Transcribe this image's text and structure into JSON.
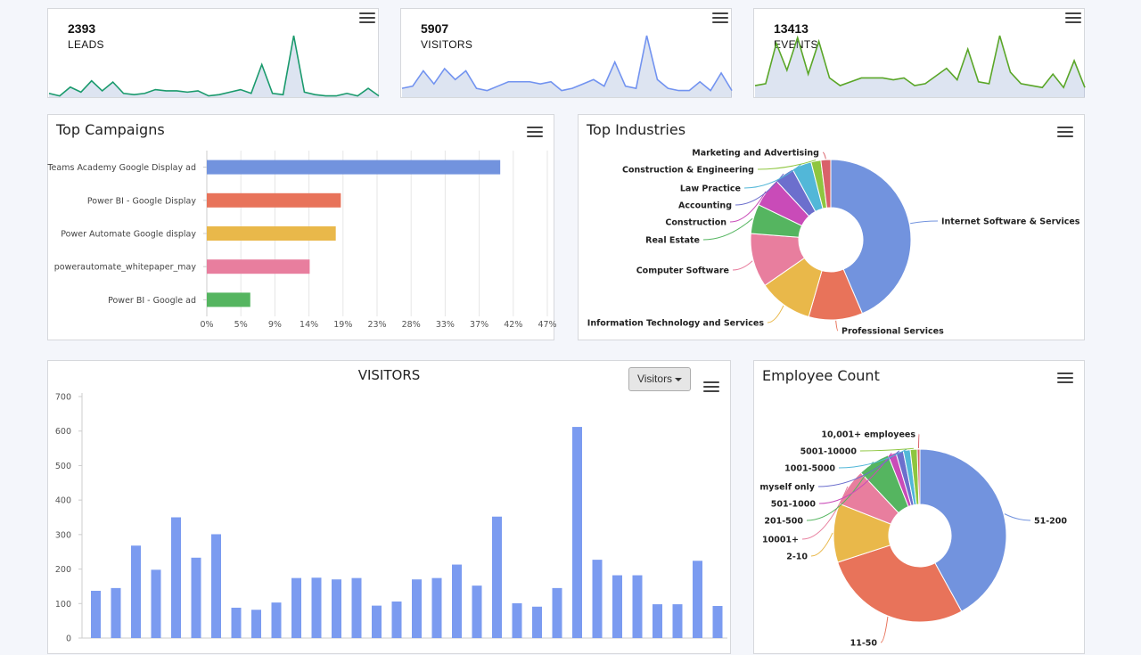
{
  "kpis": [
    {
      "value": "2393",
      "label": "LEADS",
      "color": "#1a9a6c",
      "series": [
        3,
        1,
        8,
        4,
        13,
        5,
        12,
        3,
        2,
        3,
        6,
        5,
        5,
        4,
        5,
        1,
        2,
        4,
        6,
        3,
        26,
        3,
        2,
        49,
        4,
        2,
        1,
        1,
        3,
        1,
        7,
        1
      ]
    },
    {
      "value": "5907",
      "label": "VISITORS",
      "color": "#7293f0",
      "series": [
        4,
        5,
        12,
        6,
        13,
        8,
        12,
        4,
        3,
        5,
        7,
        7,
        7,
        6,
        7,
        3,
        4,
        6,
        8,
        5,
        16,
        5,
        4,
        28,
        8,
        4,
        3,
        3,
        7,
        3,
        11,
        3
      ]
    },
    {
      "value": "13413",
      "label": "EVENTS",
      "color": "#5aa628",
      "series": [
        6,
        7,
        28,
        14,
        31,
        12,
        29,
        10,
        6,
        8,
        10,
        10,
        10,
        9,
        10,
        6,
        7,
        11,
        15,
        9,
        25,
        8,
        7,
        32,
        13,
        7,
        6,
        5,
        12,
        5,
        19,
        5
      ]
    }
  ],
  "campaigns": {
    "title": "Top Campaigns",
    "chart_data": {
      "type": "bar",
      "orientation": "horizontal",
      "categories": [
        "Teams Academy Google Display ad",
        "Power BI - Google Display",
        "Power Automate Google display",
        "powerautomate_whitepaper_may",
        "Power BI - Google ad"
      ],
      "values": [
        40.5,
        18.5,
        17.8,
        14.2,
        6.0
      ],
      "colors": [
        "#7293de",
        "#e8735a",
        "#e9b84a",
        "#e87e9e",
        "#55b560"
      ],
      "ticks": [
        "0%",
        "5%",
        "9%",
        "14%",
        "19%",
        "23%",
        "28%",
        "33%",
        "37%",
        "42%",
        "47%"
      ],
      "tick_values": [
        0,
        4.7,
        9.4,
        14.1,
        18.8,
        23.5,
        28.2,
        32.9,
        37.6,
        42.3,
        47.0
      ],
      "xlim": [
        0,
        47
      ]
    }
  },
  "industries": {
    "title": "Top Industries",
    "chart_data": {
      "type": "pie",
      "donut": true,
      "categories": [
        "Internet Software & Services",
        "Professional Services",
        "Information Technology and Services",
        "Computer Software",
        "Real Estate",
        "Construction",
        "Accounting",
        "Law Practice",
        "Construction & Engineering",
        "Marketing and Advertising"
      ],
      "values": [
        44,
        11,
        11,
        11,
        6,
        6,
        4,
        4,
        2,
        2
      ],
      "colors": [
        "#7293de",
        "#e8735a",
        "#e9b84a",
        "#e87e9e",
        "#55b560",
        "#c94bb8",
        "#6c6fcd",
        "#52b7d8",
        "#8ec63f",
        "#d9616a"
      ]
    }
  },
  "visitors": {
    "title": "VISITORS",
    "dropdown_label": "Visitors",
    "chart_data": {
      "type": "bar",
      "values": [
        137,
        145,
        268,
        198,
        350,
        233,
        301,
        88,
        82,
        103,
        174,
        175,
        170,
        174,
        94,
        106,
        170,
        174,
        213,
        152,
        352,
        101,
        91,
        145,
        612,
        227,
        182,
        182,
        98,
        98,
        224,
        93
      ],
      "color": "#7b9bf0",
      "yticks": [
        "700",
        "600",
        "500",
        "400",
        "300",
        "200",
        "100",
        "0"
      ],
      "ylim": [
        0,
        700
      ]
    }
  },
  "employees": {
    "title": "Employee Count",
    "chart_data": {
      "type": "pie",
      "donut": true,
      "categories": [
        "51-200",
        "11-50",
        "2-10",
        "10001+",
        "201-500",
        "501-1000",
        "myself only",
        "1001-5000",
        "5001-10000",
        "10,001+ employees"
      ],
      "values": [
        42,
        28,
        11,
        7,
        6,
        1.5,
        1.4,
        1.3,
        1.3,
        0.5
      ],
      "colors": [
        "#7293de",
        "#e8735a",
        "#e9b84a",
        "#e87e9e",
        "#55b560",
        "#c94bb8",
        "#6c6fcd",
        "#52b7d8",
        "#8ec63f",
        "#d9616a"
      ]
    }
  }
}
